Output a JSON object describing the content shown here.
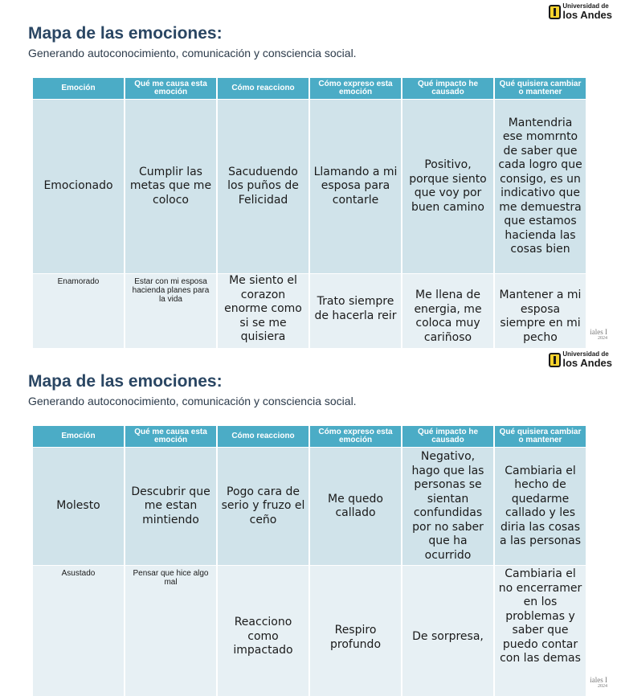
{
  "logo": {
    "line1": "Universidad de",
    "line2": "los Andes"
  },
  "corner": {
    "text": "iales I",
    "year": "2024"
  },
  "slides": [
    {
      "title": "Mapa de las emociones:",
      "subtitle": "Generando autoconocimiento, comunicación y consciencia social.",
      "headers": [
        "Emoción",
        "Qué me causa esta emoción",
        "Cómo reacciono",
        "Cómo expreso esta emoción",
        "Qué impacto he causado",
        "Qué quisiera cambiar o mantener"
      ],
      "rows": [
        [
          "Emocionado",
          "Cumplir las metas que me coloco",
          "Sacuduendo los puños de Felicidad",
          "Llamando a mi esposa para contarle",
          "Positivo, porque siento que voy por buen camino",
          "Mantendria ese momrnto de saber que cada logro que consigo, es un indicativo que me demuestra que estamos hacienda las cosas bien"
        ],
        [
          "Enamorado",
          "Estar con mi esposa hacienda planes para la vida",
          "Me siento el corazon enorme como si se me quisiera",
          "Trato siempre de hacerla reir",
          "Me llena de energia, me coloca muy cariñoso",
          "Mantener a mi esposa siempre en mi pecho"
        ]
      ]
    },
    {
      "title": "Mapa de las emociones:",
      "subtitle": "Generando autoconocimiento, comunicación y consciencia social.",
      "headers": [
        "Emoción",
        "Qué me causa esta emoción",
        "Cómo reacciono",
        "Cómo expreso esta emoción",
        "Qué impacto he causado",
        "Qué quisiera cambiar o mantener"
      ],
      "rows": [
        [
          "Molesto",
          "Descubrir que me estan mintiendo",
          "Pogo cara de serio y fruzo el ceño",
          "Me quedo callado",
          "Negativo, hago que las personas se sientan confundidas por no saber que ha ocurrido",
          "Cambiaria el hecho de quedarme callado y les diria las cosas a las personas"
        ],
        [
          "Asustado",
          "Pensar que hice algo mal",
          "Reacciono como impactado",
          "Respiro profundo",
          "De sorpresa,",
          "Cambiaria el no encerramer en los problemas y saber que puedo contar con las demas"
        ]
      ]
    }
  ]
}
